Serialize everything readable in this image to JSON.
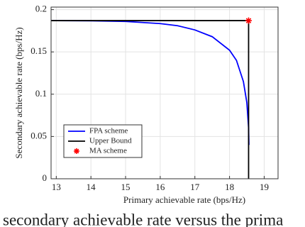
{
  "chart_data": {
    "type": "line",
    "xlabel": "Primary achievable rate (bps/Hz)",
    "ylabel": "Secondary achievable rate (bps/Hz)",
    "caption": "secondary achievable rate versus the prima",
    "xlim": [
      12.85,
      19.4
    ],
    "ylim": [
      0,
      0.203
    ],
    "xticks": [
      13,
      14,
      15,
      16,
      17,
      18,
      19
    ],
    "yticks": [
      0,
      0.05,
      0.1,
      0.15,
      0.2
    ],
    "grid": true,
    "legend": "lower left",
    "series": [
      {
        "name": "FPA scheme",
        "color": "#0000ff",
        "marker": "none",
        "x": [
          12.85,
          13,
          14,
          15,
          16,
          16.5,
          17,
          17.5,
          18,
          18.2,
          18.4,
          18.5,
          18.55,
          18.56
        ],
        "y": [
          0.187,
          0.187,
          0.1868,
          0.186,
          0.1835,
          0.181,
          0.176,
          0.168,
          0.152,
          0.14,
          0.115,
          0.09,
          0.06,
          0.04
        ]
      },
      {
        "name": "Upper Bound",
        "color": "#000000",
        "marker": "none",
        "x": [
          12.85,
          18.55,
          18.55
        ],
        "y": [
          0.187,
          0.187,
          0
        ]
      },
      {
        "name": "MA scheme",
        "color": "#ff0000",
        "marker": "star",
        "x": [
          18.55
        ],
        "y": [
          0.187
        ]
      }
    ]
  }
}
